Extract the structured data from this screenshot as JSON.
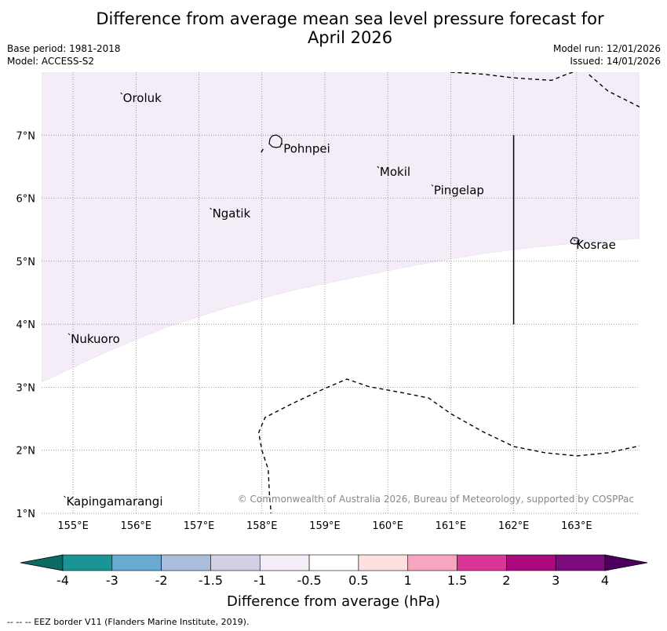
{
  "title": {
    "line1": "Difference from average mean sea level pressure forecast for",
    "line2": "April 2026"
  },
  "meta_left": {
    "base_period": "Base period: 1981-2018",
    "model": "Model: ACCESS-S2"
  },
  "meta_right": {
    "model_run": "Model run: 12/01/2026",
    "issued": "Issued: 14/01/2026"
  },
  "map": {
    "lon_range": [
      154.5,
      164.0
    ],
    "lat_range": [
      1.0,
      8.0
    ],
    "lon_ticks": [
      {
        "value": 155,
        "label": "155°E"
      },
      {
        "value": 156,
        "label": "156°E"
      },
      {
        "value": 157,
        "label": "157°E"
      },
      {
        "value": 158,
        "label": "158°E"
      },
      {
        "value": 159,
        "label": "159°E"
      },
      {
        "value": 160,
        "label": "160°E"
      },
      {
        "value": 161,
        "label": "161°E"
      },
      {
        "value": 162,
        "label": "162°E"
      },
      {
        "value": 163,
        "label": "163°E"
      }
    ],
    "lat_ticks": [
      {
        "value": 7,
        "label": "7°N"
      },
      {
        "value": 6,
        "label": "6°N"
      },
      {
        "value": 5,
        "label": "5°N"
      },
      {
        "value": 4,
        "label": "4°N"
      },
      {
        "value": 3,
        "label": "3°N"
      },
      {
        "value": 2,
        "label": "2°N"
      },
      {
        "value": 1,
        "label": "1°N"
      }
    ],
    "fill_color": "#f4ecf6",
    "fill_category": "-1 to -0.5",
    "fill_boundary": [
      [
        154.5,
        3.08
      ],
      [
        155.5,
        3.55
      ],
      [
        156.5,
        3.96
      ],
      [
        157.5,
        4.28
      ],
      [
        158.5,
        4.54
      ],
      [
        159.5,
        4.75
      ],
      [
        160.5,
        4.95
      ],
      [
        161.5,
        5.12
      ],
      [
        162.5,
        5.24
      ],
      [
        163.5,
        5.33
      ],
      [
        164.0,
        5.36
      ]
    ],
    "places": [
      {
        "name": "Oroluk",
        "lon": 155.78,
        "lat": 7.65
      },
      {
        "name": "Pohnpei",
        "lon": 158.33,
        "lat": 6.85
      },
      {
        "name": "Mokil",
        "lon": 159.86,
        "lat": 6.48
      },
      {
        "name": "Pingelap",
        "lon": 160.72,
        "lat": 6.19
      },
      {
        "name": "Ngatik",
        "lon": 157.2,
        "lat": 5.82
      },
      {
        "name": "Kosrae",
        "lon": 162.98,
        "lat": 5.32
      },
      {
        "name": "Nukuoro",
        "lon": 154.95,
        "lat": 3.83
      },
      {
        "name": "Kapingamarangi",
        "lon": 154.88,
        "lat": 1.25
      }
    ],
    "eez_lines": [
      [
        [
          161.0,
          8.0
        ],
        [
          161.5,
          7.97
        ],
        [
          162.0,
          7.91
        ],
        [
          162.6,
          7.87
        ],
        [
          162.85,
          7.97
        ],
        [
          163.0,
          8.02
        ]
      ],
      [
        [
          163.2,
          7.96
        ],
        [
          163.5,
          7.7
        ],
        [
          164.0,
          7.45
        ]
      ],
      [
        [
          158.15,
          0.95
        ],
        [
          158.12,
          1.3
        ],
        [
          158.1,
          1.7
        ],
        [
          158.0,
          2.0
        ],
        [
          157.95,
          2.28
        ],
        [
          158.05,
          2.52
        ],
        [
          158.5,
          2.75
        ],
        [
          159.0,
          2.98
        ],
        [
          159.35,
          3.13
        ],
        [
          159.7,
          3.01
        ],
        [
          160.2,
          2.92
        ],
        [
          160.65,
          2.83
        ],
        [
          161.0,
          2.58
        ],
        [
          161.5,
          2.3
        ],
        [
          162.0,
          2.06
        ],
        [
          162.5,
          1.96
        ],
        [
          163.0,
          1.91
        ],
        [
          163.5,
          1.96
        ],
        [
          164.0,
          2.07
        ]
      ],
      [
        [
          157.99,
          6.73
        ],
        [
          158.02,
          6.78
        ]
      ]
    ],
    "vertical_line": {
      "lon": 162.0,
      "lat_from": 4.0,
      "lat_to": 7.0
    },
    "copyright": "© Commonwealth of Australia 2026, Bureau of Meteorology, supported by COSPPac"
  },
  "colorbar": {
    "labels": [
      "-4",
      "-3",
      "-2",
      "-1.5",
      "-1",
      "-0.5",
      "0.5",
      "1",
      "1.5",
      "2",
      "3",
      "4"
    ],
    "colors": [
      "#1a9494",
      "#6aaad2",
      "#a8bedc",
      "#d2d0e4",
      "#f4ecf6",
      "#ffffff",
      "#fde1e1",
      "#f7a6c0",
      "#da3696",
      "#ab0a7e",
      "#7c0b7e"
    ],
    "under_color": "#0d6a62",
    "over_color": "#4c005e",
    "title": "Difference from average (hPa)"
  },
  "footer": "--  --  -- EEZ border V11 (Flanders Marine Institute, 2019)."
}
